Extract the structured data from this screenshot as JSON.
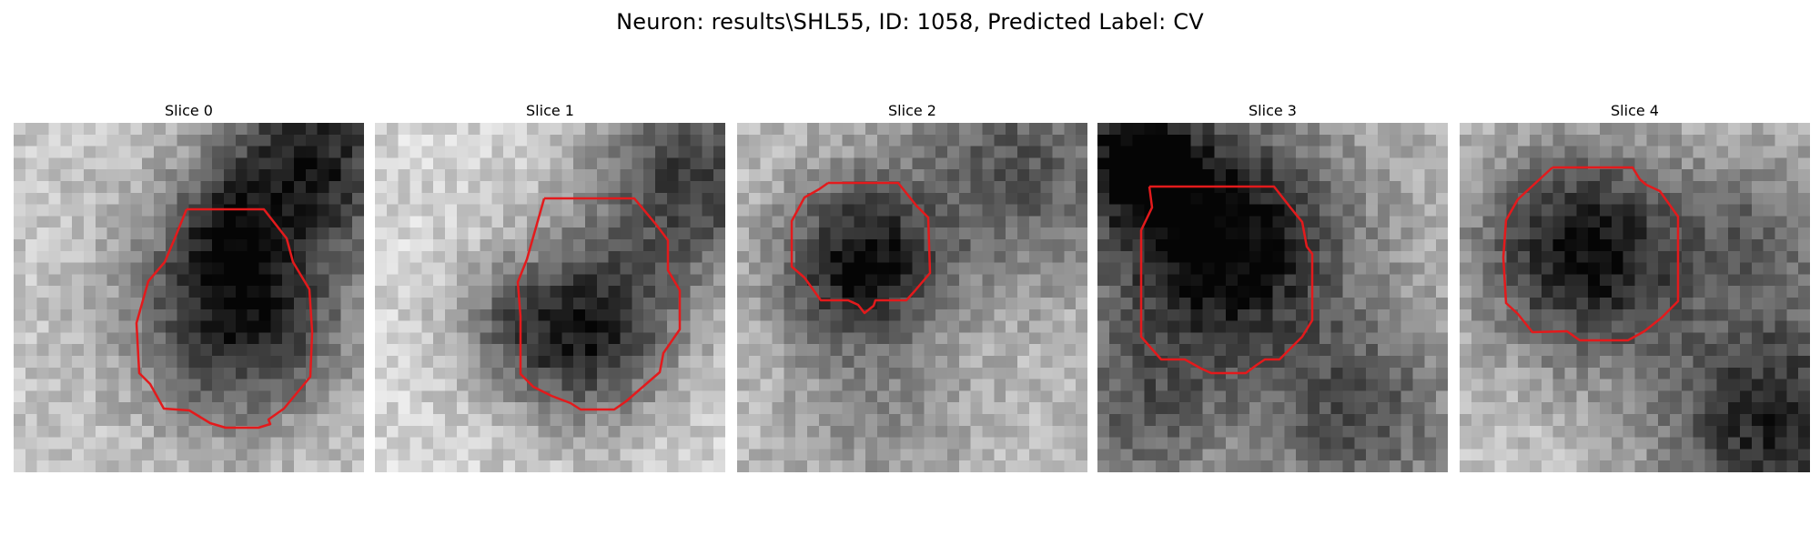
{
  "figure": {
    "title": "Neuron: results\\SHL55, ID: 1058, Predicted Label: CV",
    "contour_color": "#e31a1c",
    "colormap": "grayscale",
    "panels": [
      {
        "title": "Slice 0"
      },
      {
        "title": "Slice 1"
      },
      {
        "title": "Slice 2"
      },
      {
        "title": "Slice 3"
      },
      {
        "title": "Slice 4"
      }
    ]
  }
}
